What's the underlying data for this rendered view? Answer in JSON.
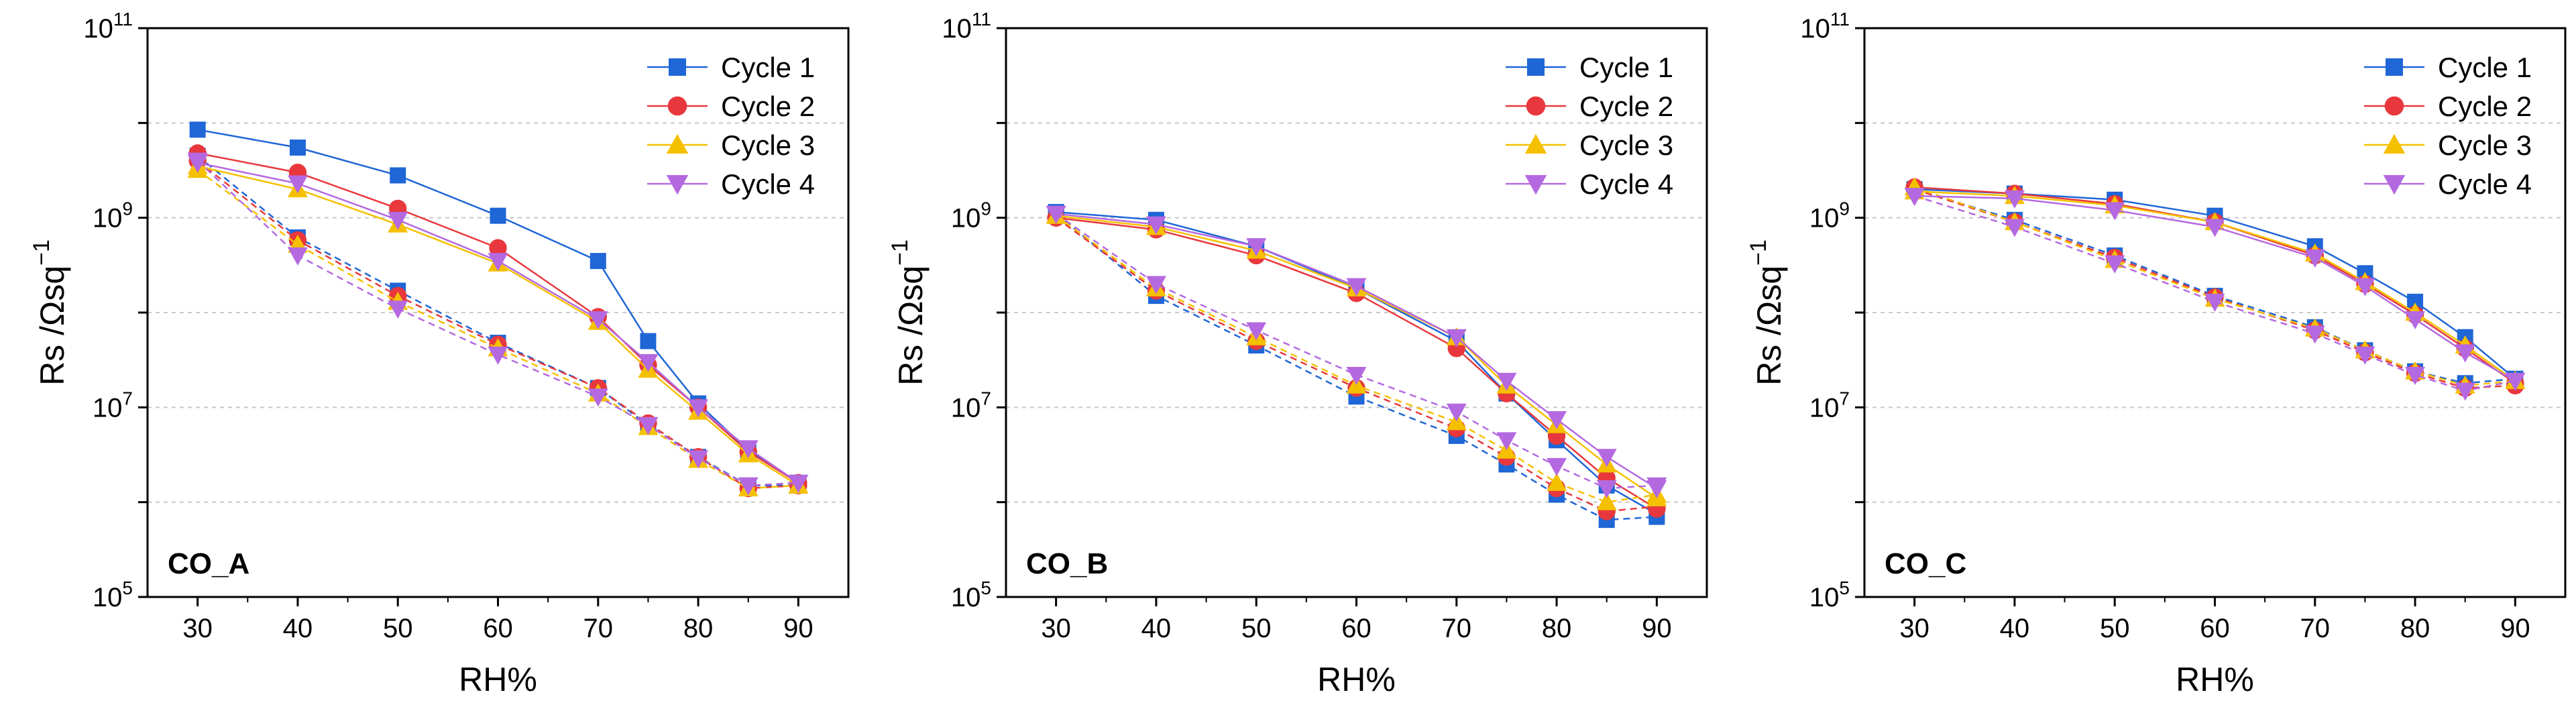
{
  "chart_data": [
    {
      "type": "line",
      "title": "",
      "panel_label": "CO_A",
      "xlabel": "RH%",
      "ylabel": "Rs /Ωsq",
      "ylabel_exponent": "−1",
      "yscale": "log",
      "xlim": [
        25,
        95
      ],
      "ylim": [
        100000,
        100000000000
      ],
      "x_ticks": [
        30,
        40,
        50,
        60,
        70,
        80,
        90
      ],
      "y_ticks": [
        {
          "value": 100000,
          "base": "10",
          "exp": "5"
        },
        {
          "value": 10000000,
          "base": "10",
          "exp": "7"
        },
        {
          "value": 1000000000,
          "base": "10",
          "exp": "9"
        },
        {
          "value": 100000000000,
          "base": "10",
          "exp": "11"
        }
      ],
      "x": [
        30,
        40,
        50,
        60,
        70,
        75,
        80,
        85,
        90
      ],
      "series": [
        {
          "name": "Cycle 1",
          "color": "#1f66d6",
          "marker": "square",
          "values": [
            8500000000.0,
            5500000000.0,
            2800000000.0,
            1050000000.0,
            350000000.0,
            50000000.0,
            11000000.0,
            3500000.0,
            1600000.0
          ],
          "values_dashed": [
            4500000000.0,
            620000000.0,
            170000000.0,
            48000000.0,
            16000000.0,
            6500000.0,
            3000000.0,
            1500000.0,
            1500000.0
          ]
        },
        {
          "name": "Cycle 2",
          "color": "#e8383d",
          "marker": "circle",
          "values": [
            4800000000.0,
            3000000000.0,
            1250000000.0,
            480000000.0,
            90000000.0,
            28000000.0,
            10000000.0,
            3400000.0,
            1600000.0
          ],
          "values_dashed": [
            4000000000.0,
            580000000.0,
            150000000.0,
            46000000.0,
            16000000.0,
            6800000.0,
            3000000.0,
            1400000.0,
            1500000.0
          ]
        },
        {
          "name": "Cycle 3",
          "color": "#f5c000",
          "marker": "triangle-up",
          "values": [
            3500000000.0,
            2000000000.0,
            850000000.0,
            330000000.0,
            80000000.0,
            25000000.0,
            9000000.0,
            3200000.0,
            1500000.0
          ],
          "values_dashed": [
            3200000000.0,
            520000000.0,
            130000000.0,
            42000000.0,
            14000000.0,
            6200000.0,
            2800000.0,
            1400000.0,
            1500000.0
          ]
        },
        {
          "name": "Cycle 4",
          "color": "#b469e0",
          "marker": "triangle-down",
          "values": [
            3800000000.0,
            2300000000.0,
            950000000.0,
            350000000.0,
            85000000.0,
            30000000.0,
            10000000.0,
            3700000.0,
            1600000.0
          ],
          "values_dashed": [
            4000000000.0,
            400000000.0,
            110000000.0,
            36000000.0,
            13000000.0,
            6500000.0,
            2900000.0,
            1500000.0,
            1600000.0
          ]
        }
      ],
      "legend_position": "top-right",
      "grid": "horizontal dashed"
    },
    {
      "type": "line",
      "title": "",
      "panel_label": "CO_B",
      "xlabel": "RH%",
      "ylabel": "Rs /Ωsq",
      "ylabel_exponent": "−1",
      "yscale": "log",
      "xlim": [
        25,
        95
      ],
      "ylim": [
        100000,
        100000000000
      ],
      "x_ticks": [
        30,
        40,
        50,
        60,
        70,
        80,
        90
      ],
      "y_ticks": [
        {
          "value": 100000,
          "base": "10",
          "exp": "5"
        },
        {
          "value": 10000000,
          "base": "10",
          "exp": "7"
        },
        {
          "value": 1000000000,
          "base": "10",
          "exp": "9"
        },
        {
          "value": 100000000000,
          "base": "10",
          "exp": "11"
        }
      ],
      "x": [
        30,
        40,
        50,
        60,
        70,
        75,
        80,
        85,
        90
      ],
      "series": [
        {
          "name": "Cycle 1",
          "color": "#1f66d6",
          "marker": "square",
          "values": [
            1150000000.0,
            950000000.0,
            500000000.0,
            180000000.0,
            50000000.0,
            14000000.0,
            4500000.0,
            1500000.0,
            750000.0
          ],
          "values_dashed": [
            1100000000.0,
            150000000.0,
            45000000.0,
            13000000.0,
            5000000.0,
            2500000.0,
            1200000.0,
            650000.0,
            700000.0
          ]
        },
        {
          "name": "Cycle 2",
          "color": "#e8383d",
          "marker": "circle",
          "values": [
            1000000000.0,
            750000000.0,
            400000000.0,
            160000000.0,
            42000000.0,
            14000000.0,
            5000000.0,
            1800000.0,
            850000.0
          ],
          "values_dashed": [
            1000000000.0,
            170000000.0,
            50000000.0,
            16000000.0,
            6000000.0,
            3000000.0,
            1400000.0,
            800000.0,
            900000.0
          ]
        },
        {
          "name": "Cycle 3",
          "color": "#f5c000",
          "marker": "triangle-up",
          "values": [
            1050000000.0,
            800000000.0,
            450000000.0,
            180000000.0,
            55000000.0,
            17000000.0,
            6500000.0,
            2500000.0,
            1100000.0
          ],
          "values_dashed": [
            1050000000.0,
            180000000.0,
            55000000.0,
            17000000.0,
            7000000.0,
            3500000.0,
            1600000.0,
            1000000.0,
            1200000.0
          ]
        },
        {
          "name": "Cycle 4",
          "color": "#b469e0",
          "marker": "triangle-down",
          "values": [
            1100000000.0,
            850000000.0,
            500000000.0,
            190000000.0,
            55000000.0,
            19000000.0,
            7500000.0,
            3000000.0,
            1400000.0
          ],
          "values_dashed": [
            1100000000.0,
            200000000.0,
            65000000.0,
            22000000.0,
            9000000.0,
            4500000.0,
            2400000.0,
            1400000.0,
            1500000.0
          ]
        }
      ],
      "legend_position": "top-right",
      "grid": "horizontal dashed"
    },
    {
      "type": "line",
      "title": "",
      "panel_label": "CO_C",
      "xlabel": "RH%",
      "ylabel": "Rs /Ωsq",
      "ylabel_exponent": "−1",
      "yscale": "log",
      "xlim": [
        25,
        95
      ],
      "ylim": [
        100000,
        100000000000
      ],
      "x_ticks": [
        30,
        40,
        50,
        60,
        70,
        80,
        90
      ],
      "y_ticks": [
        {
          "value": 100000,
          "base": "10",
          "exp": "5"
        },
        {
          "value": 10000000,
          "base": "10",
          "exp": "7"
        },
        {
          "value": 1000000000,
          "base": "10",
          "exp": "9"
        },
        {
          "value": 100000000000,
          "base": "10",
          "exp": "11"
        }
      ],
      "x": [
        30,
        40,
        50,
        60,
        70,
        75,
        80,
        85,
        90
      ],
      "series": [
        {
          "name": "Cycle 1",
          "color": "#1f66d6",
          "marker": "square",
          "values": [
            2000000000.0,
            1800000000.0,
            1550000000.0,
            1050000000.0,
            500000000.0,
            260000000.0,
            130000000.0,
            55000000.0,
            20000000.0
          ],
          "values_dashed": [
            2000000000.0,
            950000000.0,
            400000000.0,
            150000000.0,
            70000000.0,
            40000000.0,
            24000000.0,
            18000000.0,
            20000000.0
          ]
        },
        {
          "name": "Cycle 2",
          "color": "#e8383d",
          "marker": "circle",
          "values": [
            2100000000.0,
            1800000000.0,
            1400000000.0,
            900000000.0,
            400000000.0,
            200000000.0,
            95000000.0,
            42000000.0,
            18000000.0
          ],
          "values_dashed": [
            2000000000.0,
            900000000.0,
            380000000.0,
            145000000.0,
            65000000.0,
            38000000.0,
            23000000.0,
            16000000.0,
            17000000.0
          ]
        },
        {
          "name": "Cycle 3",
          "color": "#f5c000",
          "marker": "triangle-up",
          "values": [
            1900000000.0,
            1700000000.0,
            1350000000.0,
            900000000.0,
            420000000.0,
            210000000.0,
            100000000.0,
            45000000.0,
            19000000.0
          ],
          "values_dashed": [
            2100000000.0,
            900000000.0,
            360000000.0,
            140000000.0,
            68000000.0,
            40000000.0,
            24000000.0,
            17000000.0,
            19000000.0
          ]
        },
        {
          "name": "Cycle 4",
          "color": "#b469e0",
          "marker": "triangle-down",
          "values": [
            1700000000.0,
            1600000000.0,
            1200000000.0,
            800000000.0,
            380000000.0,
            190000000.0,
            85000000.0,
            38000000.0,
            19000000.0
          ],
          "values_dashed": [
            1700000000.0,
            800000000.0,
            330000000.0,
            130000000.0,
            60000000.0,
            36000000.0,
            22000000.0,
            15000000.0,
            19000000.0
          ]
        }
      ],
      "legend_position": "top-right",
      "grid": "horizontal dashed"
    }
  ]
}
